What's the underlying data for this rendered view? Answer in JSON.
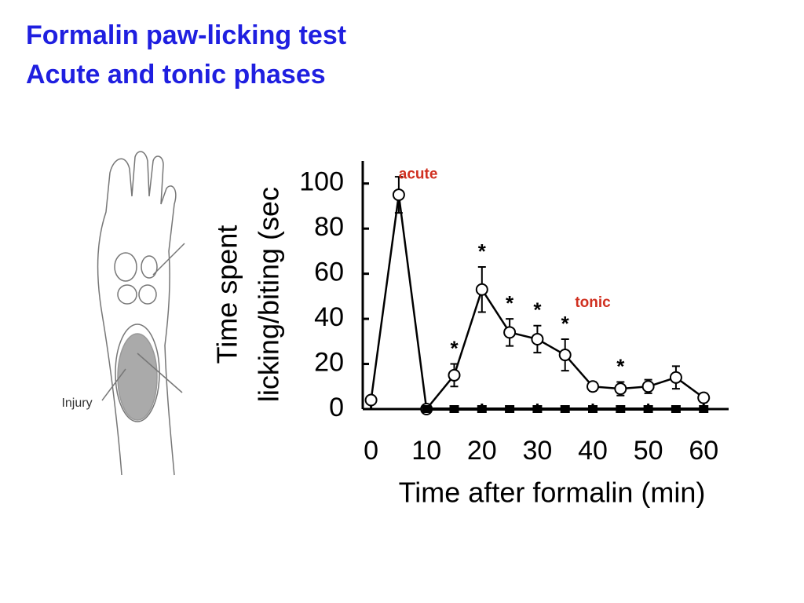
{
  "slide_title": [
    "Formalin paw-licking test",
    "Acute and tonic phases"
  ],
  "illustration": {
    "label": "Injury"
  },
  "chart_data": {
    "type": "line",
    "ylabel": [
      "Time spent",
      "licking/biting (sec"
    ],
    "xlabel": "Time after formalin (min)",
    "x": [
      0,
      5,
      10,
      15,
      20,
      25,
      30,
      35,
      40,
      45,
      50,
      55,
      60
    ],
    "series": [
      {
        "color": "#000000",
        "marker": "open-circle",
        "values": [
          4,
          95,
          0,
          15,
          53,
          34,
          31,
          24,
          10,
          9,
          10,
          14,
          5
        ],
        "errors": [
          null,
          8,
          null,
          5,
          10,
          6,
          6,
          7,
          2,
          3,
          3,
          5,
          2
        ]
      },
      {
        "color": "#000000",
        "marker": "filled-square",
        "values": [
          null,
          null,
          0,
          0,
          0,
          0,
          0,
          0,
          0,
          0,
          0,
          0,
          0
        ]
      }
    ],
    "significance": {
      "label": "*",
      "x": [
        15,
        20,
        25,
        30,
        35,
        45
      ]
    },
    "annotations": [
      {
        "text": "acute",
        "x": 8.5,
        "y": 104,
        "color": "#d03020"
      },
      {
        "text": "tonic",
        "x": 40,
        "y": 47,
        "color": "#d03020"
      }
    ],
    "xlim": [
      -1.5,
      64.5
    ],
    "ylim": [
      0,
      110
    ],
    "xticks": [
      0,
      10,
      20,
      30,
      40,
      50,
      60
    ],
    "yticks": [
      0,
      20,
      40,
      60,
      80,
      100
    ]
  }
}
